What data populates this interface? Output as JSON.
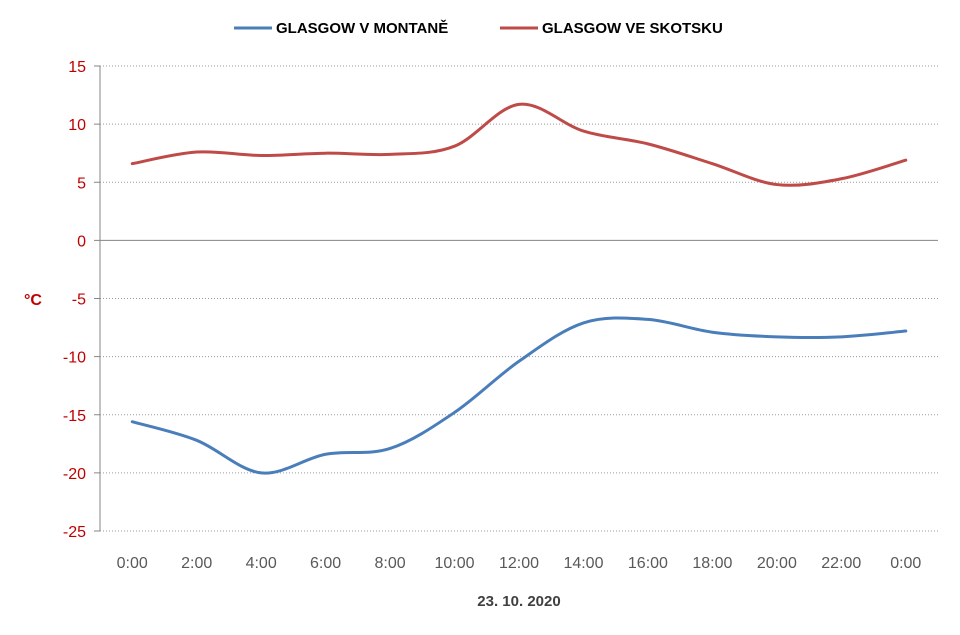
{
  "chart_data": {
    "type": "line",
    "xlabel": "23. 10. 2020",
    "ylabel": "°C",
    "categories": [
      "0:00",
      "2:00",
      "4:00",
      "6:00",
      "8:00",
      "10:00",
      "12:00",
      "14:00",
      "16:00",
      "18:00",
      "20:00",
      "22:00",
      "0:00"
    ],
    "ylim": [
      -25,
      15
    ],
    "yticks": [
      15,
      10,
      5,
      0,
      -5,
      -10,
      -15,
      -20,
      -25
    ],
    "grid": true,
    "legend": "top",
    "series": [
      {
        "name": "GLASGOW V MONTANĚ",
        "color": "#4a7ebb",
        "values": [
          -15.6,
          -17.2,
          -20.0,
          -18.4,
          -17.9,
          -14.8,
          -10.4,
          -7.1,
          -6.8,
          -7.9,
          -8.3,
          -8.3,
          -7.8
        ]
      },
      {
        "name": "GLASGOW VE SKOTSKU",
        "color": "#be4b48",
        "values": [
          6.6,
          7.6,
          7.3,
          7.5,
          7.4,
          8.1,
          11.7,
          9.4,
          8.3,
          6.6,
          4.8,
          5.3,
          6.9
        ]
      }
    ]
  }
}
